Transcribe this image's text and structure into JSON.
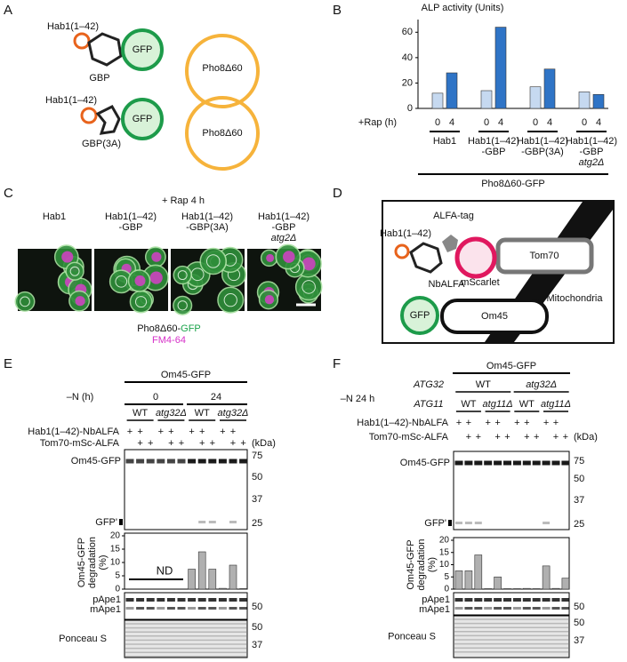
{
  "panel_labels": [
    "A",
    "B",
    "C",
    "D",
    "E",
    "F"
  ],
  "panel_a": {
    "rows": [
      {
        "hab1": "Hab1(1–42)",
        "binder": "GBP",
        "gfp": "GFP",
        "cargo": "Pho8Δ60"
      },
      {
        "hab1": "Hab1(1–42)",
        "binder": "GBP(3A)",
        "gfp": "GFP",
        "cargo": "Pho8Δ60"
      }
    ]
  },
  "chart_data": [
    {
      "type": "bar",
      "title": "ALP activity (Units)",
      "x_label": "+Rap (h)",
      "categories": [
        [
          "Hab1"
        ],
        [
          "Hab1(1–42)",
          "-GBP"
        ],
        [
          "Hab1(1–42)",
          "-GBP(3A)"
        ],
        [
          "Hab1(1–42)",
          "-GBP",
          "atg2Δ"
        ]
      ],
      "group_label": "Pho8Δ60-GFP",
      "series": [
        {
          "name": "0",
          "color": "#c6d9f0",
          "values": [
            12,
            14,
            17,
            13
          ]
        },
        {
          "name": "4",
          "color": "#2f74c6",
          "values": [
            28,
            64,
            31,
            11
          ]
        }
      ],
      "ylim": [
        0,
        70
      ],
      "yticks": [
        0,
        20,
        40,
        60
      ]
    },
    {
      "type": "bar",
      "y_label": [
        "Om45-GFP",
        "degradation",
        "(%)"
      ],
      "annotation": "ND",
      "color": "#b0b0b0",
      "values": [
        null,
        null,
        null,
        null,
        null,
        null,
        7.5,
        14,
        7.5,
        0.3,
        9,
        0.2
      ],
      "ylim": [
        0,
        20
      ],
      "yticks": [
        0,
        5,
        10,
        15,
        20
      ]
    },
    {
      "type": "bar",
      "y_label": [
        "Om45-GFP",
        "degradation",
        "(%)"
      ],
      "color": "#b0b0b0",
      "values": [
        7.5,
        7.5,
        14,
        0.2,
        5,
        0.2,
        0.2,
        0.3,
        0.2,
        9.5,
        0.3,
        4.5
      ],
      "ylim": [
        0,
        20
      ],
      "yticks": [
        0,
        5,
        10,
        15,
        20
      ]
    }
  ],
  "panel_c": {
    "treatment": "+ Rap 4 h",
    "columns": [
      [
        "Hab1"
      ],
      [
        "Hab1(1–42)",
        "-GBP"
      ],
      [
        "Hab1(1–42)",
        "-GBP(3A)"
      ],
      [
        "Hab1(1–42)",
        "-GBP",
        "atg2Δ"
      ]
    ],
    "legend": {
      "prefix": "Pho8Δ60-",
      "gfp": "GFP",
      "fm": "FM4-64"
    }
  },
  "panel_d": {
    "hab1": "Hab1(1–42)",
    "tag": "ALFA-tag",
    "binder": "NbALFA",
    "fluor": "mScarlet",
    "anchor": "Tom70",
    "organelle": "Mitochondria",
    "gfp": "GFP",
    "cargo": "Om45"
  },
  "panel_e": {
    "header": "Om45-GFP",
    "condition_label": "–N (h)",
    "times": [
      "0",
      "24"
    ],
    "strains": [
      "WT",
      "atg32Δ",
      "WT",
      "atg32Δ"
    ],
    "rows": [
      {
        "label": "Hab1(1–42)-NbALFA",
        "marks": [
          "+",
          "+",
          null,
          "+",
          "+",
          null,
          "+",
          "+",
          null,
          "+",
          "+",
          null
        ]
      },
      {
        "label": "Tom70-mSc-ALFA",
        "marks": [
          null,
          "+",
          "+",
          null,
          "+",
          "+",
          null,
          "+",
          "+",
          null,
          "+",
          "+"
        ]
      }
    ],
    "unit": "(kDa)",
    "blot_label": "Om45-GFP",
    "cleaved_label": "GFP'",
    "markers": [
      75,
      50,
      37,
      25
    ],
    "ape1_labels": [
      "pApe1",
      "mApe1"
    ],
    "ape1_markers": [
      50
    ],
    "ponceau_label": "Ponceau S",
    "ponceau_markers": [
      50,
      37
    ]
  },
  "panel_f": {
    "header": "Om45-GFP",
    "condition_label": "–N 24 h",
    "gene1": "ATG32",
    "gene1_strains": [
      "WT",
      "atg32Δ"
    ],
    "gene2": "ATG11",
    "gene2_strains": [
      "WT",
      "atg11Δ",
      "WT",
      "atg11Δ"
    ],
    "rows": [
      {
        "label": "Hab1(1–42)-NbALFA",
        "marks": [
          "+",
          "+",
          null,
          "+",
          "+",
          null,
          "+",
          "+",
          null,
          "+",
          "+",
          null
        ]
      },
      {
        "label": "Tom70-mSc-ALFA",
        "marks": [
          null,
          "+",
          "+",
          null,
          "+",
          "+",
          null,
          "+",
          "+",
          null,
          "+",
          "+"
        ]
      }
    ],
    "unit": "(kDa)",
    "blot_label": "Om45-GFP",
    "cleaved_label": "GFP'",
    "markers": [
      75,
      50,
      37,
      25
    ],
    "ape1_labels": [
      "pApe1",
      "mApe1"
    ],
    "ape1_markers": [
      50
    ],
    "ponceau_label": "Ponceau S",
    "ponceau_markers": [
      50,
      37
    ]
  }
}
